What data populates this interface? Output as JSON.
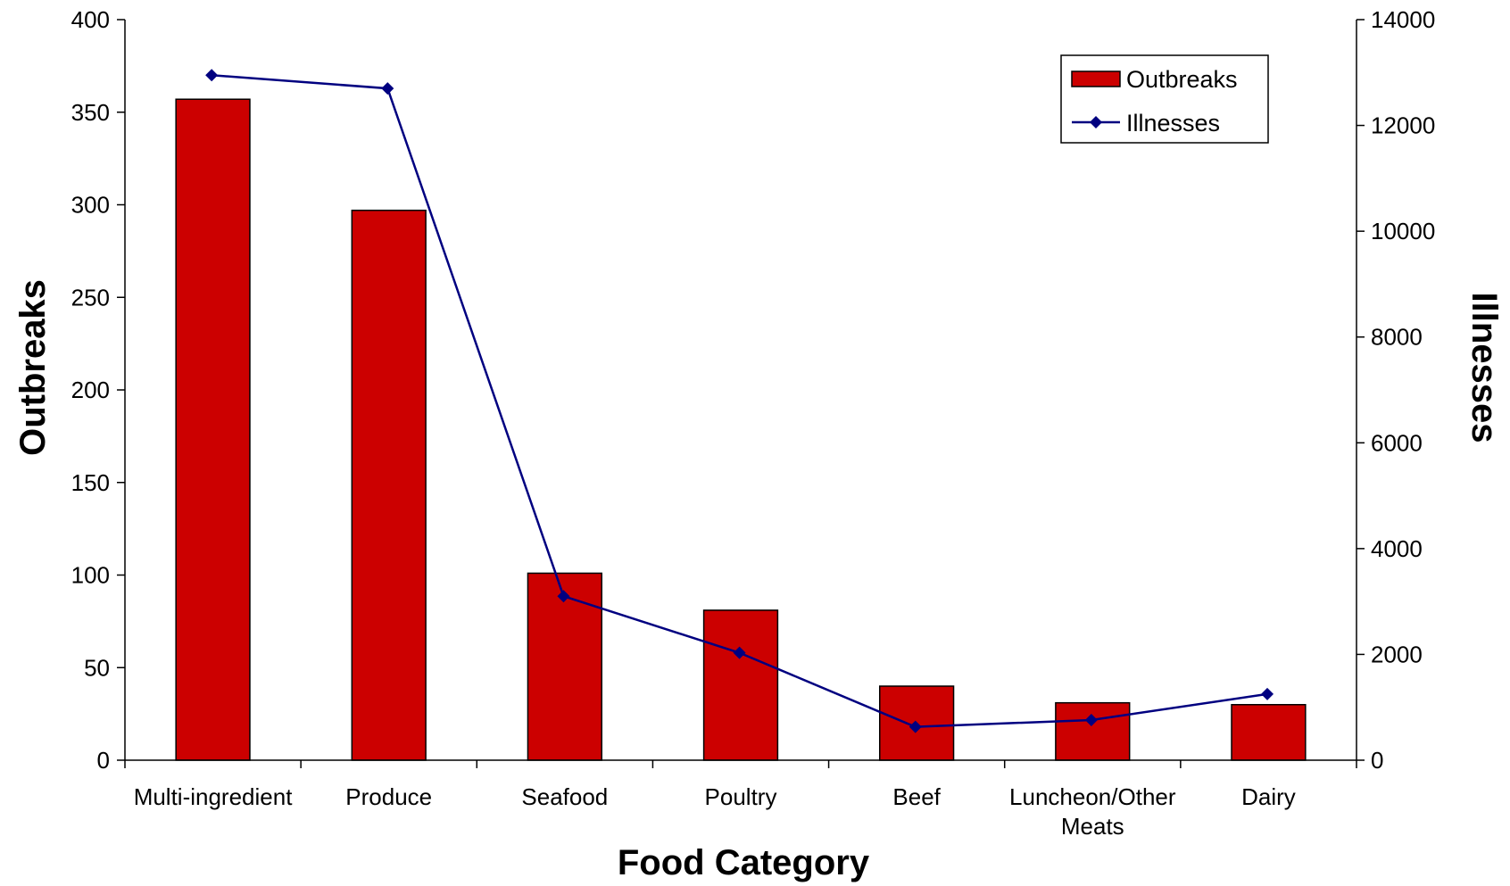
{
  "chart_data": {
    "type": "bar",
    "categories": [
      [
        "Multi-ingredient"
      ],
      [
        "Produce"
      ],
      [
        "Seafood"
      ],
      [
        "Poultry"
      ],
      [
        "Beef"
      ],
      [
        "Luncheon/Other",
        "Meats"
      ],
      [
        "Dairy"
      ]
    ],
    "series": [
      {
        "name": "Outbreaks",
        "kind": "bar",
        "axis": "left",
        "color": "#cc0000",
        "values": [
          357,
          297,
          101,
          81,
          40,
          31,
          30
        ]
      },
      {
        "name": "Illnesses",
        "kind": "line",
        "axis": "right",
        "color": "#000080",
        "values": [
          12950,
          12700,
          3100,
          2030,
          630,
          760,
          1250
        ]
      }
    ],
    "xlabel": "Food Category",
    "ylabel": "Outbreaks",
    "y2label": "Illnesses",
    "ylim": [
      0,
      400
    ],
    "y2lim": [
      0,
      14000
    ],
    "yticks": [
      0,
      50,
      100,
      150,
      200,
      250,
      300,
      350,
      400
    ],
    "y2ticks": [
      0,
      2000,
      4000,
      6000,
      8000,
      10000,
      12000,
      14000
    ],
    "legend": {
      "position": "top-right",
      "entries": [
        "Outbreaks",
        "Illnesses"
      ]
    },
    "grid": false
  }
}
